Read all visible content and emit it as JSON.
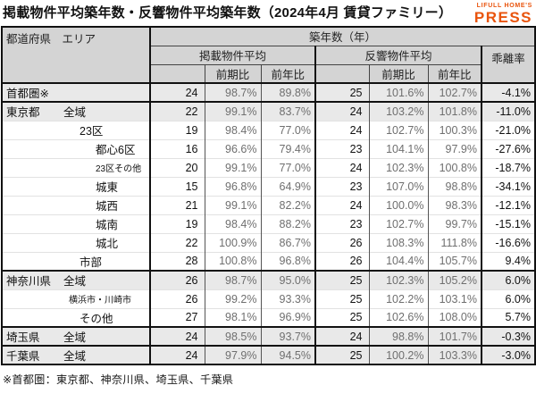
{
  "title": "掲載物件平均築年数・反響物件平均築年数（2024年4月 賃貸ファミリー）",
  "logo": {
    "line1": "LIFULL HOME'S",
    "line2": "PRESS",
    "color": "#E9540D"
  },
  "footnote": "※首都圏：東京都、神奈川県、埼玉県、千葉県",
  "colors": {
    "accent_orange": "#E9540D",
    "header_bg": "#d4d4d4",
    "shaded_row_bg": "#e9e9e9",
    "pct_text_gray": "#6f6f6f",
    "border_dark": "#111111"
  },
  "table": {
    "header": {
      "area": "都道府県　エリア",
      "age_group": "築年数（年）",
      "listed_group": "掲載物件平均",
      "response_group": "反響物件平均",
      "divergence": "乖離率",
      "prev_period": "前期比",
      "prev_year": "前年比"
    },
    "rows": [
      {
        "pref": "首都圏※",
        "area": "",
        "indent": "",
        "small": false,
        "shaded": true,
        "thickTop": true,
        "values": [
          "24",
          "98.7%",
          "89.8%",
          "25",
          "101.6%",
          "102.7%",
          "-4.1%"
        ]
      },
      {
        "pref": "東京都",
        "area": "全域",
        "indent": "",
        "small": false,
        "shaded": true,
        "thickTop": true,
        "values": [
          "22",
          "99.1%",
          "83.7%",
          "24",
          "103.2%",
          "101.8%",
          "-11.0%"
        ]
      },
      {
        "pref": "",
        "area": "23区",
        "indent": "ind1",
        "small": false,
        "shaded": false,
        "thickTop": false,
        "values": [
          "19",
          "98.4%",
          "77.0%",
          "24",
          "102.7%",
          "100.3%",
          "-21.0%"
        ]
      },
      {
        "pref": "",
        "area": "都心6区",
        "indent": "ind2",
        "small": false,
        "shaded": false,
        "thickTop": false,
        "values": [
          "16",
          "96.6%",
          "79.4%",
          "23",
          "104.1%",
          "97.9%",
          "-27.6%"
        ]
      },
      {
        "pref": "",
        "area": "23区その他",
        "indent": "ind2",
        "small": true,
        "shaded": false,
        "thickTop": false,
        "values": [
          "20",
          "99.1%",
          "77.0%",
          "24",
          "102.3%",
          "100.8%",
          "-18.7%"
        ]
      },
      {
        "pref": "",
        "area": "城東",
        "indent": "ind2",
        "small": false,
        "shaded": false,
        "thickTop": false,
        "values": [
          "15",
          "96.8%",
          "64.9%",
          "23",
          "107.0%",
          "98.8%",
          "-34.1%"
        ]
      },
      {
        "pref": "",
        "area": "城西",
        "indent": "ind2",
        "small": false,
        "shaded": false,
        "thickTop": false,
        "values": [
          "21",
          "99.1%",
          "82.2%",
          "24",
          "100.0%",
          "98.3%",
          "-12.1%"
        ]
      },
      {
        "pref": "",
        "area": "城南",
        "indent": "ind2",
        "small": false,
        "shaded": false,
        "thickTop": false,
        "values": [
          "19",
          "98.4%",
          "88.2%",
          "23",
          "102.7%",
          "99.7%",
          "-15.1%"
        ]
      },
      {
        "pref": "",
        "area": "城北",
        "indent": "ind2",
        "small": false,
        "shaded": false,
        "thickTop": false,
        "values": [
          "22",
          "100.9%",
          "86.7%",
          "26",
          "108.3%",
          "111.8%",
          "-16.6%"
        ]
      },
      {
        "pref": "",
        "area": "市部",
        "indent": "ind1",
        "small": false,
        "shaded": false,
        "thickTop": false,
        "values": [
          "28",
          "100.8%",
          "96.8%",
          "26",
          "104.4%",
          "105.7%",
          "9.4%"
        ]
      },
      {
        "pref": "神奈川県",
        "area": "全域",
        "indent": "",
        "small": false,
        "shaded": true,
        "thickTop": true,
        "values": [
          "26",
          "98.7%",
          "95.0%",
          "25",
          "102.3%",
          "105.2%",
          "6.0%"
        ]
      },
      {
        "pref": "",
        "area": "横浜市・川崎市",
        "indent": "ind1s",
        "small": true,
        "shaded": false,
        "thickTop": false,
        "values": [
          "26",
          "99.2%",
          "93.3%",
          "25",
          "102.2%",
          "103.1%",
          "6.0%"
        ]
      },
      {
        "pref": "",
        "area": "その他",
        "indent": "ind1",
        "small": false,
        "shaded": false,
        "thickTop": false,
        "values": [
          "27",
          "98.1%",
          "96.9%",
          "25",
          "102.6%",
          "108.0%",
          "5.7%"
        ]
      },
      {
        "pref": "埼玉県",
        "area": "全域",
        "indent": "",
        "small": false,
        "shaded": true,
        "thickTop": true,
        "values": [
          "24",
          "98.5%",
          "93.7%",
          "24",
          "98.8%",
          "101.7%",
          "-0.3%"
        ]
      },
      {
        "pref": "千葉県",
        "area": "全域",
        "indent": "",
        "small": false,
        "shaded": true,
        "thickTop": true,
        "values": [
          "24",
          "97.9%",
          "94.5%",
          "25",
          "100.2%",
          "103.3%",
          "-3.0%"
        ]
      }
    ]
  },
  "chart_data": {
    "type": "table",
    "title": "掲載物件平均築年数・反響物件平均築年数（2024年4月 賃貸ファミリー）",
    "columns": [
      "都道府県・エリア",
      "掲載物件平均 築年数(年)",
      "掲載 前期比",
      "掲載 前年比",
      "反響物件平均 築年数(年)",
      "反響 前期比",
      "反響 前年比",
      "乖離率"
    ],
    "rows": [
      [
        "首都圏※",
        24,
        "98.7%",
        "89.8%",
        25,
        "101.6%",
        "102.7%",
        "-4.1%"
      ],
      [
        "東京都 全域",
        22,
        "99.1%",
        "83.7%",
        24,
        "103.2%",
        "101.8%",
        "-11.0%"
      ],
      [
        "東京都 23区",
        19,
        "98.4%",
        "77.0%",
        24,
        "102.7%",
        "100.3%",
        "-21.0%"
      ],
      [
        "東京都 都心6区",
        16,
        "96.6%",
        "79.4%",
        23,
        "104.1%",
        "97.9%",
        "-27.6%"
      ],
      [
        "東京都 23区その他",
        20,
        "99.1%",
        "77.0%",
        24,
        "102.3%",
        "100.8%",
        "-18.7%"
      ],
      [
        "東京都 城東",
        15,
        "96.8%",
        "64.9%",
        23,
        "107.0%",
        "98.8%",
        "-34.1%"
      ],
      [
        "東京都 城西",
        21,
        "99.1%",
        "82.2%",
        24,
        "100.0%",
        "98.3%",
        "-12.1%"
      ],
      [
        "東京都 城南",
        19,
        "98.4%",
        "88.2%",
        23,
        "102.7%",
        "99.7%",
        "-15.1%"
      ],
      [
        "東京都 城北",
        22,
        "100.9%",
        "86.7%",
        26,
        "108.3%",
        "111.8%",
        "-16.6%"
      ],
      [
        "東京都 市部",
        28,
        "100.8%",
        "96.8%",
        26,
        "104.4%",
        "105.7%",
        "9.4%"
      ],
      [
        "神奈川県 全域",
        26,
        "98.7%",
        "95.0%",
        25,
        "102.3%",
        "105.2%",
        "6.0%"
      ],
      [
        "神奈川県 横浜市・川崎市",
        26,
        "99.2%",
        "93.3%",
        25,
        "102.2%",
        "103.1%",
        "6.0%"
      ],
      [
        "神奈川県 その他",
        27,
        "98.1%",
        "96.9%",
        25,
        "102.6%",
        "108.0%",
        "5.7%"
      ],
      [
        "埼玉県 全域",
        24,
        "98.5%",
        "93.7%",
        24,
        "98.8%",
        "101.7%",
        "-0.3%"
      ],
      [
        "千葉県 全域",
        24,
        "97.9%",
        "94.5%",
        25,
        "100.2%",
        "103.3%",
        "-3.0%"
      ]
    ]
  }
}
